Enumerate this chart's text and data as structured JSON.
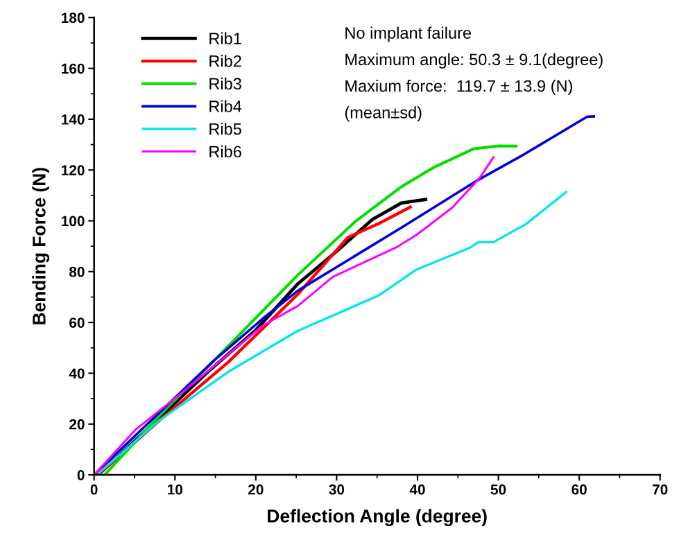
{
  "chart_data": {
    "type": "line",
    "xlabel": "Deflection Angle (degree)",
    "ylabel": "Bending Force (N)",
    "xlim": [
      0,
      70
    ],
    "xticks": [
      0,
      10,
      20,
      30,
      40,
      50,
      60,
      70
    ],
    "ylim": [
      0,
      180
    ],
    "yticks": [
      0,
      20,
      40,
      60,
      80,
      100,
      120,
      140,
      160,
      180
    ],
    "grid": false,
    "legend": "top left",
    "marker": "none",
    "line_style": "solid",
    "annotations": [
      "No implant failure",
      "Maximum angle: 50.3 ± 9.1(degree)",
      "Maxium force:  119.7 ± 13.9 (N)",
      "(mean±sd)"
    ],
    "series": [
      {
        "name": "Rib1",
        "color": "#000000",
        "x": [
          0.5,
          6.6,
          13.8,
          20,
          25.2,
          30,
          34.4,
          38,
          41
        ],
        "values": [
          0,
          18,
          39.8,
          57,
          75.2,
          88,
          100.5,
          107,
          108.4
        ]
      },
      {
        "name": "Rib2",
        "color": "#ff0000",
        "x": [
          0.5,
          8.1,
          16.6,
          25.2,
          31.4,
          35.2,
          39.1
        ],
        "values": [
          0,
          21.5,
          44.4,
          71.1,
          93.5,
          98.9,
          105.4
        ]
      },
      {
        "name": "Rib3",
        "color": "#00dd00",
        "x": [
          1.3,
          8.1,
          16.6,
          25.2,
          32.3,
          38,
          42,
          46.9,
          50,
          52.2
        ],
        "values": [
          0,
          23.4,
          50.7,
          78.7,
          99.7,
          113.4,
          121,
          128.3,
          129.5,
          129.4
        ]
      },
      {
        "name": "Rib4",
        "color": "#0000dd",
        "x": [
          0,
          14.9,
          20.9,
          25.2,
          38,
          47.5,
          53.2,
          61,
          61.8
        ],
        "values": [
          0,
          45.2,
          61.6,
          72.5,
          97.3,
          116.1,
          126.2,
          141,
          141.1
        ]
      },
      {
        "name": "Rib5",
        "color": "#00e5ee",
        "x": [
          0.6,
          8.1,
          16.6,
          25.2,
          35.2,
          39.8,
          46.6,
          47.5,
          49.4,
          53.5,
          58.4
        ],
        "values": [
          0.8,
          21.5,
          40.6,
          56.7,
          70.6,
          80.7,
          89.6,
          91.6,
          91.6,
          98.9,
          111.4
        ]
      },
      {
        "name": "Rib6",
        "color": "#ff00ff",
        "x": [
          0,
          5.2,
          10.9,
          20.9,
          25.2,
          29.5,
          37.4,
          39.8,
          44.3,
          47.7,
          49.4
        ],
        "values": [
          0,
          18,
          32.4,
          58.9,
          66.5,
          77.9,
          89.6,
          94.3,
          105.2,
          116.9,
          125.1
        ]
      }
    ]
  }
}
